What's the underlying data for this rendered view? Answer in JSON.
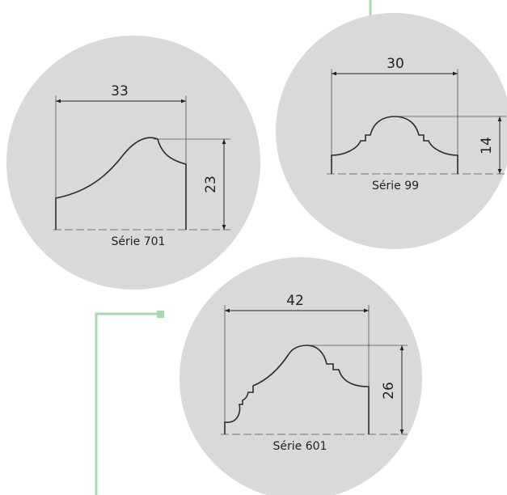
{
  "colors": {
    "background": "#ffffff",
    "circle_fill": "#d9d9d9",
    "accent_line": "#a8d8b0",
    "profile_stroke": "#2b2b2b",
    "thin_line": "#555555"
  },
  "profiles": [
    {
      "id": "serie-701",
      "label": "Série 701",
      "width_dim": "33",
      "height_dim": "23"
    },
    {
      "id": "serie-99",
      "label": "Série 99",
      "width_dim": "30",
      "height_dim": "14"
    },
    {
      "id": "serie-601",
      "label": "Série 601",
      "width_dim": "42",
      "height_dim": "26"
    }
  ]
}
